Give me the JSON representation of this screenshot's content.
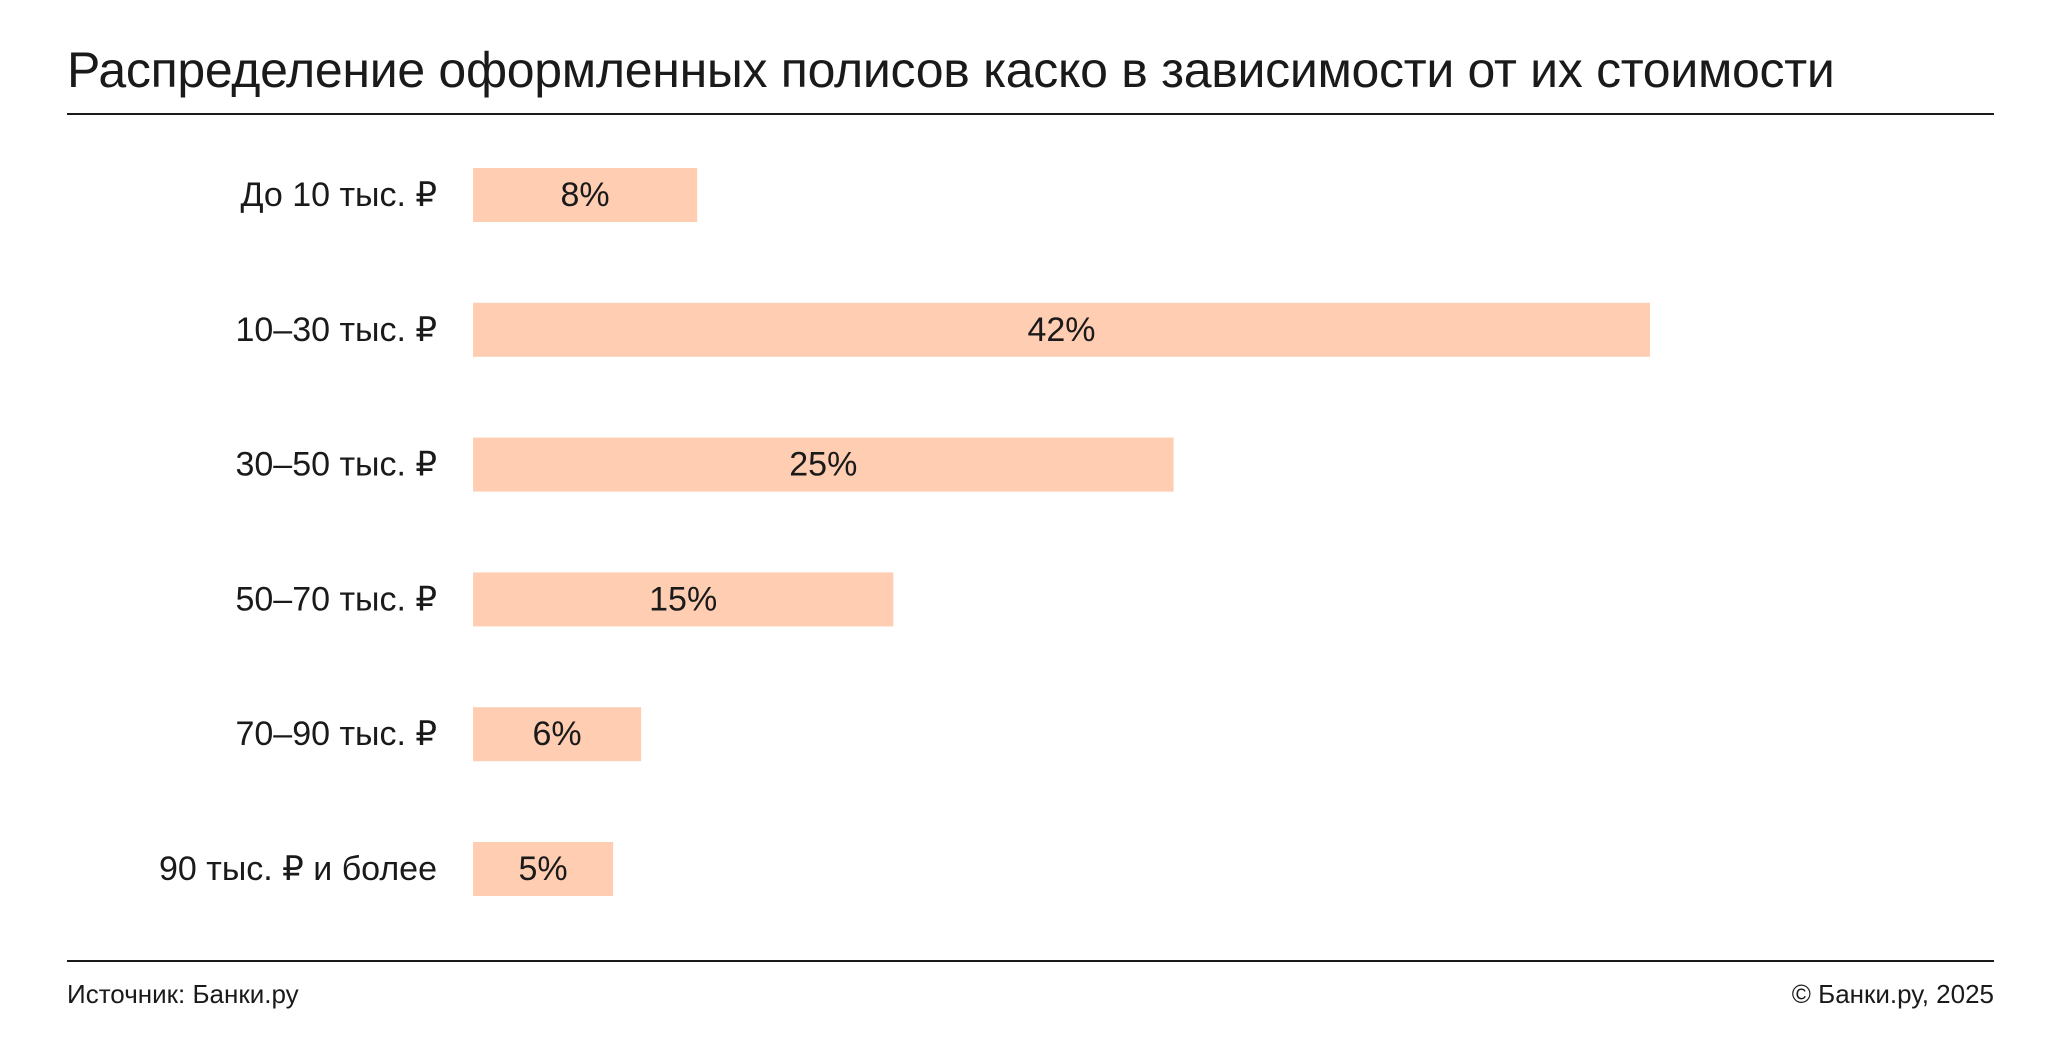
{
  "title": "Распределение оформленных полисов каско в зависимости от их стоимости",
  "footer": {
    "source": "Источник: Банки.ру",
    "copyright": "© Банки.ру, 2025"
  },
  "colors": {
    "bar": "#fecdb2",
    "text": "#1a1a1a",
    "background": "#ffffff"
  },
  "chart_data": {
    "type": "bar",
    "orientation": "horizontal",
    "title": "Распределение оформленных полисов каско в зависимости от их стоимости",
    "categories": [
      "До 10 тыс. ₽",
      "10–30 тыс. ₽",
      "30–50 тыс. ₽",
      "50–70 тыс. ₽",
      "70–90 тыс. ₽",
      "90 тыс. ₽ и более"
    ],
    "values": [
      8,
      42,
      25,
      15,
      6,
      5
    ],
    "data_labels": [
      "8%",
      "42%",
      "25%",
      "15%",
      "6%",
      "5%"
    ],
    "unit": "%",
    "grid": false,
    "legend": "none"
  }
}
